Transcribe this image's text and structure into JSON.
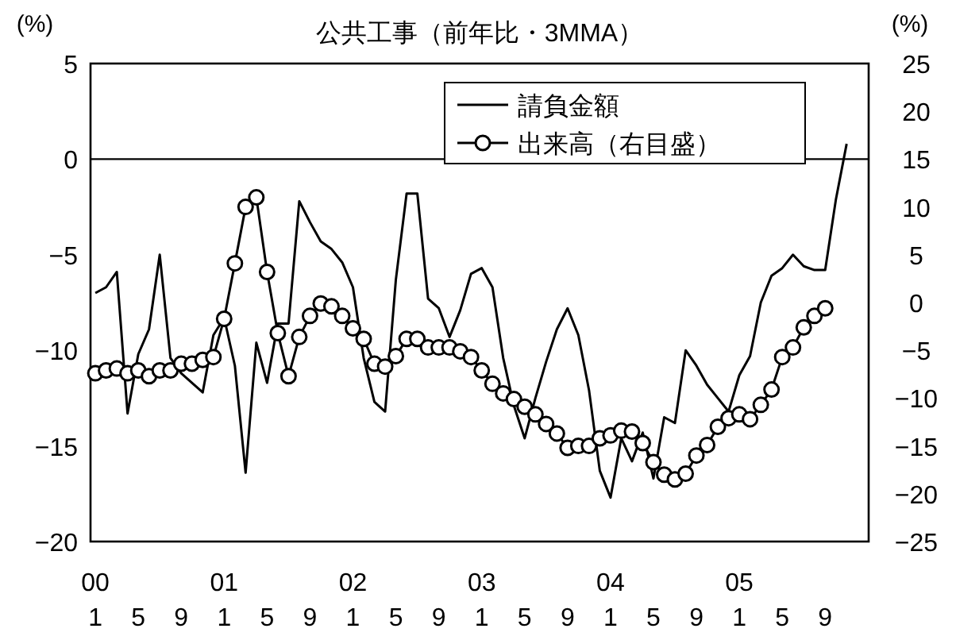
{
  "chart_data": {
    "type": "line",
    "title": "公共工事（前年比・3MMA）",
    "ylabel": "(%)",
    "y2label": "(%)",
    "categories": [
      "1",
      null,
      null,
      null,
      "5",
      null,
      null,
      null,
      "9",
      null,
      null,
      null,
      "1",
      null,
      null,
      null,
      "5",
      null,
      null,
      null,
      "9",
      null,
      null,
      null,
      "1",
      null,
      null,
      null,
      "5",
      null,
      null,
      null,
      "9",
      null,
      null,
      null,
      "1",
      null,
      null,
      null,
      "5",
      null,
      null,
      null,
      "9",
      null,
      null,
      null,
      "1",
      null,
      null,
      null,
      "5",
      null,
      null,
      null,
      "9",
      null,
      null,
      null,
      "1",
      null,
      null,
      null,
      "5",
      null,
      null,
      null,
      "9",
      null,
      null
    ],
    "annotations": [
      "00",
      "01",
      "02",
      "03",
      "04",
      "05"
    ],
    "ylim": [
      -20,
      5
    ],
    "yticks": [
      -20,
      -15,
      -10,
      -5,
      0,
      5
    ],
    "y2lim": [
      -25,
      25
    ],
    "y2ticks": [
      -25,
      -20,
      -15,
      -10,
      -5,
      0,
      5,
      10,
      15,
      20,
      25
    ],
    "ref_lines": [
      {
        "axis": "y",
        "value": 0,
        "color": "#000000"
      }
    ],
    "legend": "top right",
    "grid": false,
    "series": [
      {
        "name": "請負金額",
        "color": "#000000",
        "marker": "none",
        "values": [
          -7.0,
          -6.7,
          -5.9,
          -13.3,
          -10.2,
          -8.9,
          -5.0,
          -10.4,
          -11.2,
          -11.7,
          -12.2,
          -9.2,
          -8.3,
          -10.8,
          -16.4,
          -9.6,
          -11.7,
          -8.6,
          -8.6,
          -2.2,
          -3.3,
          -4.3,
          -4.7,
          -5.4,
          -6.7,
          -10.4,
          -12.7,
          -13.2,
          -6.3,
          -1.8,
          -1.8,
          -7.3,
          -7.8,
          -9.3,
          -7.9,
          -6.0,
          -5.7,
          -6.7,
          -10.4,
          -12.9,
          -14.6,
          -12.5,
          -10.6,
          -8.9,
          -7.8,
          -9.2,
          -12.1,
          -16.3,
          -17.7,
          -14.6,
          -15.8,
          -14.3,
          -16.7,
          -13.5,
          -13.8,
          -10.0,
          -10.8,
          -11.8,
          -12.5,
          -13.2,
          -11.3,
          -10.3,
          -7.5,
          -6.1,
          -5.7,
          -5.0,
          -5.6,
          -5.8,
          -5.8,
          -2.1,
          0.8
        ]
      },
      {
        "name": "出来高（右目盛）",
        "color": "#000000",
        "marker": "circle",
        "axis": "y2",
        "values": [
          -7.4,
          -7.1,
          -6.9,
          -7.4,
          -7.1,
          -7.7,
          -7.1,
          -7.1,
          -6.4,
          -6.4,
          -6.0,
          -5.7,
          -1.7,
          4.1,
          10.0,
          11.0,
          3.2,
          -3.2,
          -7.7,
          -3.6,
          -1.4,
          -0.1,
          -0.4,
          -1.4,
          -2.7,
          -3.8,
          -6.4,
          -6.7,
          -5.6,
          -3.8,
          -3.8,
          -4.7,
          -4.7,
          -4.7,
          -5.1,
          -5.7,
          -7.1,
          -8.5,
          -9.5,
          -10.1,
          -10.9,
          -11.7,
          -12.7,
          -13.7,
          -15.2,
          -15.0,
          -15.0,
          -14.2,
          -13.9,
          -13.4,
          -13.5,
          -14.7,
          -16.7,
          -18.0,
          -18.5,
          -17.9,
          -16.0,
          -14.9,
          -13.0,
          -12.1,
          -11.7,
          -12.2,
          -10.7,
          -9.1,
          -5.7,
          -4.7,
          -2.6,
          -1.4,
          -0.6,
          null,
          null
        ]
      }
    ]
  }
}
